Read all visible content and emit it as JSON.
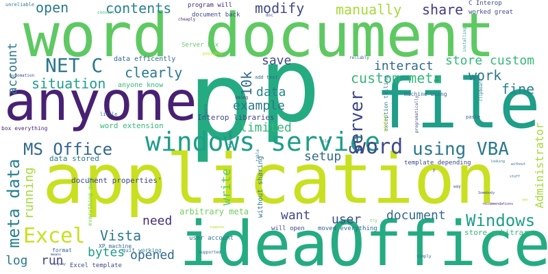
{
  "words": [
    {
      "text": "p",
      "color": "#25ab82"
    },
    {
      "text": "p",
      "color": "#25ab82"
    },
    {
      "text": "word document",
      "color": "#5ec962"
    },
    {
      "text": "application",
      "color": "#c8e020"
    },
    {
      "text": "ideaOffice",
      "color": "#25ab82"
    },
    {
      "text": "anyone",
      "color": "#482173"
    },
    {
      "text": "file",
      "color": "#1f9e89"
    },
    {
      "text": "windows service",
      "color": "#1f9e89"
    },
    {
      "text": "word",
      "color": "#3e4989"
    },
    {
      "text": "using VBA",
      "color": "#2a788e"
    },
    {
      "text": "MS Office",
      "color": "#31688e"
    },
    {
      "text": "NET C",
      "color": "#2a788e"
    },
    {
      "text": "Excel",
      "color": "#c8e020"
    },
    {
      "text": "meta data",
      "color": "#26828e"
    },
    {
      "text": "Windows",
      "color": "#1f9e89"
    },
    {
      "text": "situation",
      "color": "#1f9e89"
    },
    {
      "text": "clearly",
      "color": "#2a788e"
    },
    {
      "text": "custom meta",
      "color": "#35b779"
    },
    {
      "text": "modify",
      "color": "#3e4989"
    },
    {
      "text": "open",
      "color": "#2a788e"
    },
    {
      "text": "contents",
      "color": "#26828e"
    },
    {
      "text": "manually",
      "color": "#a5db36"
    },
    {
      "text": "share",
      "color": "#443983"
    },
    {
      "text": "interact",
      "color": "#31688e"
    },
    {
      "text": "store custom",
      "color": "#35b779"
    },
    {
      "text": "work",
      "color": "#2a788e"
    },
    {
      "text": "fine",
      "color": "#26828e"
    },
    {
      "text": "save",
      "color": "#3e4989"
    },
    {
      "text": "10k",
      "color": "#31688e"
    },
    {
      "text": "data",
      "color": "#26828e"
    },
    {
      "text": "example",
      "color": "#2a788e"
    },
    {
      "text": "Server",
      "color": "#3e4989"
    },
    {
      "text": "account",
      "color": "#2a788e"
    },
    {
      "text": "limited",
      "color": "#35b779"
    },
    {
      "text": "setup",
      "color": "#31688e"
    },
    {
      "text": "running",
      "color": "#a5db36"
    },
    {
      "text": "write",
      "color": "#5ec962"
    },
    {
      "text": "Vista",
      "color": "#2a788e"
    },
    {
      "text": "need",
      "color": "#472d7b"
    },
    {
      "text": "want",
      "color": "#3e4989"
    },
    {
      "text": "user",
      "color": "#3e4989"
    },
    {
      "text": "document",
      "color": "#31688e"
    },
    {
      "text": "bytes",
      "color": "#1f9e89"
    },
    {
      "text": "opened",
      "color": "#31688e"
    },
    {
      "text": "log",
      "color": "#2a788e"
    },
    {
      "text": "run",
      "color": "#3e4989"
    },
    {
      "text": "Administrator",
      "color": "#a5db36"
    },
    {
      "text": "arbitrary meta",
      "color": "#6ece58"
    },
    {
      "text": "store arbitrary",
      "color": "#35b779"
    },
    {
      "text": "document properties'",
      "color": "#3e4989"
    },
    {
      "text": "word extension",
      "color": "#35b779"
    },
    {
      "text": "data stored",
      "color": "#2a788e"
    },
    {
      "text": "Interop libraries",
      "color": "#3e4989"
    },
    {
      "text": "data efficently",
      "color": "#31688e"
    },
    {
      "text": "anyone know",
      "color": "#35b779"
    },
    {
      "text": "Server box",
      "color": "#5ec962"
    },
    {
      "text": "program will",
      "color": "#482878"
    },
    {
      "text": "document back",
      "color": "#3e4989"
    },
    {
      "text": "C Interop",
      "color": "#3e4989"
    },
    {
      "text": "worked great",
      "color": "#3e4989"
    },
    {
      "text": "template depending",
      "color": "#3e4989"
    },
    {
      "text": "machine using",
      "color": "#31688e"
    },
    {
      "text": "without sharing",
      "color": "#2a788e"
    },
    {
      "text": "moved everything",
      "color": "#31688e"
    },
    {
      "text": "user account",
      "color": "#2a788e"
    },
    {
      "text": "will open",
      "color": "#3e4989"
    },
    {
      "text": "quit working",
      "color": "#2a788e"
    },
    {
      "text": "Excel template",
      "color": "#3e4989"
    },
    {
      "text": "XP machine",
      "color": "#31688e"
    },
    {
      "text": "format",
      "color": "#31688e"
    },
    {
      "text": "box everything",
      "color": "#482878"
    },
    {
      "text": "everything quit",
      "color": "#6ece58"
    },
    {
      "text": "exception telling",
      "color": "#2a788e"
    },
    {
      "text": "programatically",
      "color": "#3e4989"
    },
    {
      "text": "paste",
      "color": "#31688e"
    },
    {
      "text": "clipboard",
      "color": "#2a788e"
    },
    {
      "text": "add text",
      "color": "#31688e"
    },
    {
      "text": "using",
      "color": "#482878"
    },
    {
      "text": "aware",
      "color": "#31688e"
    },
    {
      "text": "already",
      "color": "#2a788e"
    },
    {
      "text": "little",
      "color": "#31688e"
    },
    {
      "text": "automation",
      "color": "#3e4989"
    },
    {
      "text": "unreliable",
      "color": "#2a788e"
    },
    {
      "text": "convert",
      "color": "#35b779"
    },
    {
      "text": "cheaply",
      "color": "#482878"
    },
    {
      "text": "doc",
      "color": "#3e4989"
    },
    {
      "text": "possible",
      "color": "#c8e020"
    },
    {
      "text": "reliably",
      "color": "#31688e"
    },
    {
      "text": "installing",
      "color": "#1f9e89"
    },
    {
      "text": "product",
      "color": "#c8e020"
    },
    {
      "text": "table",
      "color": "#26828e"
    },
    {
      "text": "old",
      "color": "#31688e"
    },
    {
      "text": "simply",
      "color": "#31688e"
    },
    {
      "text": "supported",
      "color": "#31688e"
    },
    {
      "text": "suppose",
      "color": "#b5de2b"
    },
    {
      "text": "recommendations",
      "color": "#482878"
    },
    {
      "text": "Somebody",
      "color": "#3e4989"
    },
    {
      "text": "way",
      "color": "#3e4989"
    },
    {
      "text": "without",
      "color": "#31688e"
    },
    {
      "text": "stuff",
      "color": "#31688e"
    },
    {
      "text": "looking",
      "color": "#2a788e"
    },
    {
      "text": "anyway",
      "color": "#3e4989"
    },
    {
      "text": "means",
      "color": "#3e4989"
    },
    {
      "text": "try",
      "color": "#6ece58"
    },
    {
      "text": "yes",
      "color": "#b5de2b"
    },
    {
      "text": "p",
      "color": "#3e4989"
    }
  ]
}
